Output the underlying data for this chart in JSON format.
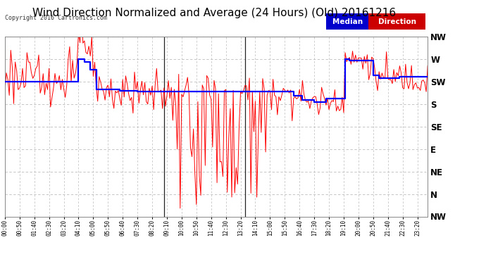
{
  "title": "Wind Direction Normalized and Average (24 Hours) (Old) 20161216",
  "copyright": "Copyright 2016 Cartronics.com",
  "legend_median_text": "Median",
  "legend_direction_text": "Direction",
  "legend_median_color": "#0000cc",
  "legend_direction_color": "#cc0000",
  "ytick_labels": [
    "NW",
    "W",
    "SW",
    "S",
    "SE",
    "E",
    "NE",
    "N",
    "NW"
  ],
  "ytick_values": [
    315,
    270,
    225,
    180,
    135,
    90,
    45,
    0,
    -45
  ],
  "ylim": [
    -45,
    315
  ],
  "background_color": "#ffffff",
  "grid_color": "#bbbbbb",
  "median_color": "#0000ff",
  "direction_color": "#ff0000",
  "dark_line_color": "#222222",
  "title_fontsize": 11,
  "num_points": 288,
  "xtick_step": 10
}
